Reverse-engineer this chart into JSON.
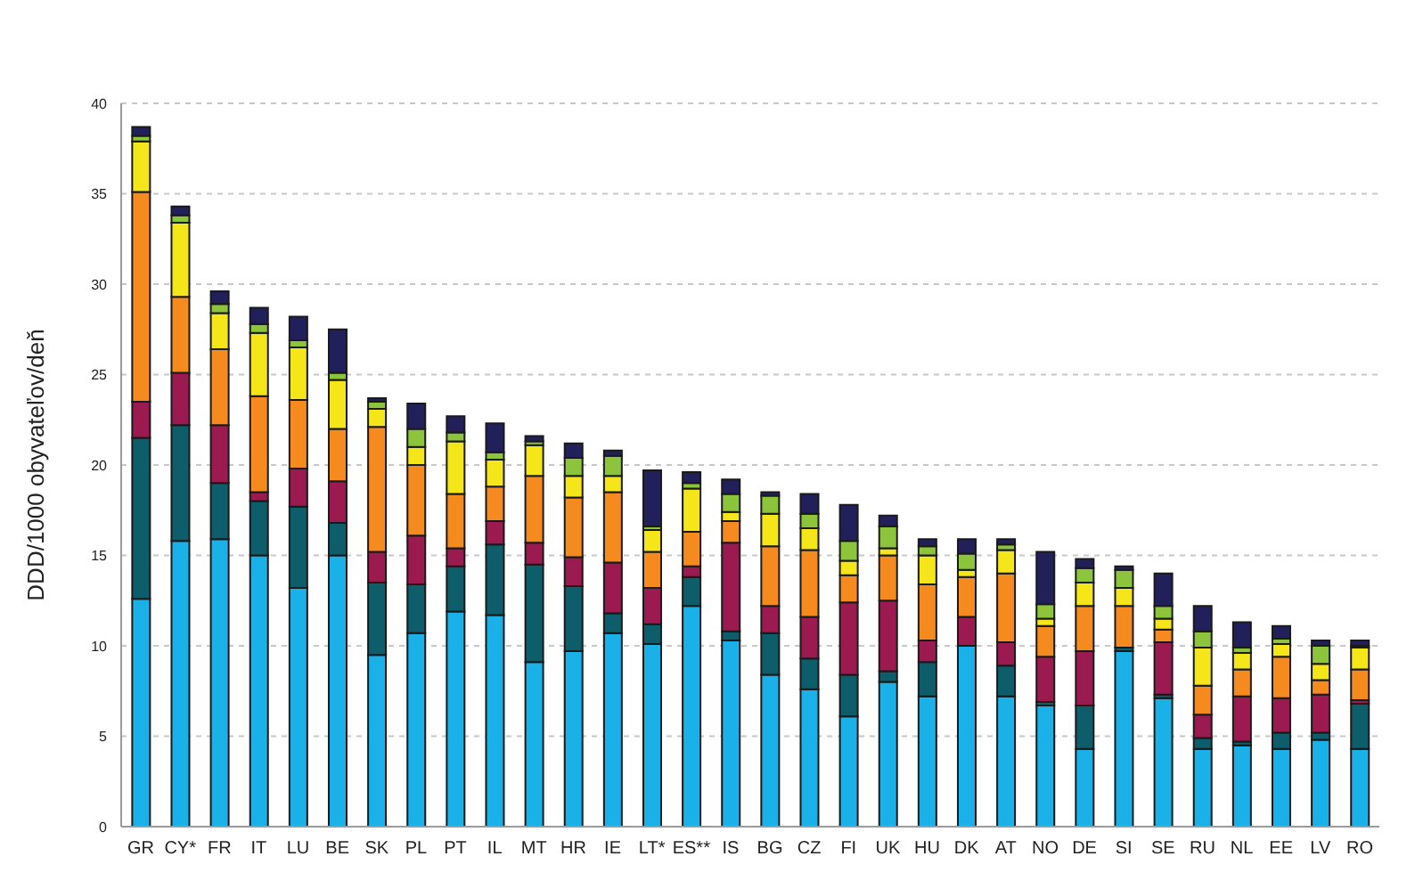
{
  "chart_data": {
    "type": "bar",
    "stacked": true,
    "ylabel": "DDD/1000 obyvateľov/deň",
    "categories": [
      "GR",
      "CY*",
      "FR",
      "IT",
      "LU",
      "BE",
      "SK",
      "PL",
      "PT",
      "IL",
      "MT",
      "HR",
      "IE",
      "LT*",
      "ES**",
      "IS",
      "BG",
      "CZ",
      "FI",
      "UK",
      "HU",
      "DK",
      "AT",
      "NO",
      "DE",
      "SI",
      "SE",
      "RU",
      "NL",
      "EE",
      "LV",
      "RO"
    ],
    "series": [
      {
        "color": "#1ab0e8",
        "values": [
          12.6,
          15.8,
          15.9,
          15.0,
          13.2,
          15.0,
          9.5,
          10.7,
          11.9,
          11.7,
          9.1,
          9.7,
          10.7,
          10.1,
          12.2,
          10.3,
          8.4,
          7.6,
          6.1,
          8.0,
          7.2,
          10.0,
          7.2,
          6.7,
          4.3,
          9.7,
          7.1,
          4.3,
          4.5,
          4.3,
          4.8,
          4.3
        ]
      },
      {
        "color": "#0d5d6b",
        "values": [
          8.9,
          6.4,
          3.1,
          3.0,
          4.5,
          1.8,
          4.0,
          2.7,
          2.5,
          3.9,
          5.4,
          3.6,
          1.1,
          1.1,
          1.6,
          0.5,
          2.3,
          1.7,
          2.3,
          0.6,
          1.9,
          0,
          1.7,
          0.2,
          2.4,
          0.2,
          0.2,
          0.6,
          0.2,
          0.9,
          0.4,
          2.5
        ]
      },
      {
        "color": "#9b1a50",
        "values": [
          2.0,
          2.9,
          3.2,
          0.5,
          2.1,
          2.3,
          1.7,
          2.7,
          1.0,
          1.3,
          1.2,
          1.6,
          2.8,
          2.0,
          0.6,
          4.9,
          1.5,
          2.3,
          4.0,
          3.9,
          1.2,
          1.6,
          1.3,
          2.5,
          3.0,
          0,
          2.9,
          1.3,
          2.5,
          1.9,
          2.1,
          0.2
        ]
      },
      {
        "color": "#f58a1f",
        "values": [
          11.6,
          4.2,
          4.2,
          5.3,
          3.8,
          2.9,
          6.9,
          3.9,
          3.0,
          1.9,
          3.7,
          3.3,
          3.9,
          2.0,
          1.9,
          1.2,
          3.3,
          3.7,
          1.5,
          2.5,
          3.1,
          2.2,
          3.8,
          1.7,
          2.5,
          2.3,
          0.7,
          1.6,
          1.5,
          2.3,
          0.8,
          1.7
        ]
      },
      {
        "color": "#f5e61a",
        "values": [
          2.8,
          4.1,
          2.0,
          3.5,
          2.9,
          2.7,
          1.0,
          1.0,
          2.9,
          1.5,
          1.7,
          1.2,
          0.9,
          1.2,
          2.4,
          0.5,
          1.8,
          1.2,
          0.8,
          0.4,
          1.6,
          0.4,
          1.3,
          0.4,
          1.3,
          1.0,
          0.6,
          2.1,
          0.9,
          0.7,
          0.9,
          1.2
        ]
      },
      {
        "color": "#8cc43c",
        "values": [
          0.3,
          0.4,
          0.5,
          0.5,
          0.4,
          0.4,
          0.4,
          1.0,
          0.5,
          0.4,
          0.2,
          1.0,
          1.1,
          0.2,
          0.3,
          1.0,
          1.0,
          0.8,
          1.1,
          1.2,
          0.5,
          0.9,
          0.3,
          0.8,
          0.8,
          1.0,
          0.7,
          0.9,
          0.3,
          0.3,
          1.0,
          0.1
        ]
      },
      {
        "color": "#22205a",
        "values": [
          0.5,
          0.5,
          0.7,
          0.9,
          1.3,
          2.4,
          0.2,
          1.4,
          0.9,
          1.6,
          0.3,
          0.8,
          0.3,
          3.1,
          0.6,
          0.8,
          0.2,
          1.1,
          2.0,
          0.6,
          0.4,
          0.8,
          0.3,
          2.9,
          0.5,
          0.2,
          1.8,
          1.4,
          1.4,
          0.7,
          0.3,
          0.3
        ]
      }
    ],
    "ylim": [
      0,
      40
    ],
    "yticks": [
      0,
      5,
      10,
      15,
      20,
      25,
      30,
      35,
      40
    ],
    "grid": "y"
  }
}
